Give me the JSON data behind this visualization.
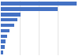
{
  "values": [
    240,
    180,
    62,
    52,
    42,
    28,
    20,
    16,
    13,
    8
  ],
  "bar_color": "#4472c4",
  "background_color": "#ffffff",
  "grid_color": "#d9d9d9",
  "figsize": [
    1.0,
    0.71
  ],
  "dpi": 100
}
